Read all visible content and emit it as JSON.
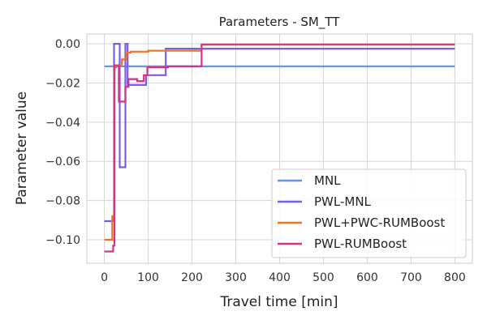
{
  "chart_data": {
    "type": "line",
    "title": "Parameters - SM_TT",
    "xlabel": "Travel time [min]",
    "ylabel": "Parameter value",
    "xlim": [
      -40,
      840
    ],
    "ylim": [
      -0.112,
      0.005
    ],
    "xticks": [
      0,
      100,
      200,
      300,
      400,
      500,
      600,
      700,
      800
    ],
    "yticks": [
      0.0,
      -0.02,
      -0.04,
      -0.06,
      -0.08,
      -0.1
    ],
    "ytick_labels": [
      "0.00",
      "−0.02",
      "−0.04",
      "−0.06",
      "−0.08",
      "−0.10"
    ],
    "grid": true,
    "legend_position": "lower-right",
    "series": [
      {
        "name": "MNL",
        "color": "#6495ED",
        "step": true,
        "x": [
          0,
          800
        ],
        "y": [
          -0.0115,
          -0.0115
        ]
      },
      {
        "name": "PWL-MNL",
        "color": "#7B5CE6",
        "step": true,
        "x": [
          0,
          15,
          22,
          35,
          48,
          53,
          95,
          140,
          222,
          800
        ],
        "y": [
          -0.0905,
          -0.0905,
          0.0,
          -0.063,
          0.0,
          -0.021,
          -0.016,
          -0.0025,
          -0.0025,
          -0.0025
        ]
      },
      {
        "name": "PWL+PWC-RUMBoost",
        "color": "#F5731E",
        "step": true,
        "x": [
          0,
          8,
          18,
          23,
          27,
          40,
          50,
          60,
          100,
          222,
          800
        ],
        "y": [
          -0.1,
          -0.1,
          -0.088,
          -0.012,
          -0.011,
          -0.008,
          -0.0045,
          -0.004,
          -0.0035,
          -0.0004,
          -0.0004
        ]
      },
      {
        "name": "PWL-RUMBoost",
        "color": "#D63384",
        "step": true,
        "x": [
          0,
          8,
          20,
          23,
          33,
          48,
          55,
          75,
          90,
          98,
          145,
          222,
          800
        ],
        "y": [
          -0.106,
          -0.106,
          -0.103,
          -0.011,
          -0.0295,
          -0.022,
          -0.018,
          -0.019,
          -0.016,
          -0.012,
          -0.0115,
          -0.0003,
          -0.0003
        ]
      }
    ]
  }
}
